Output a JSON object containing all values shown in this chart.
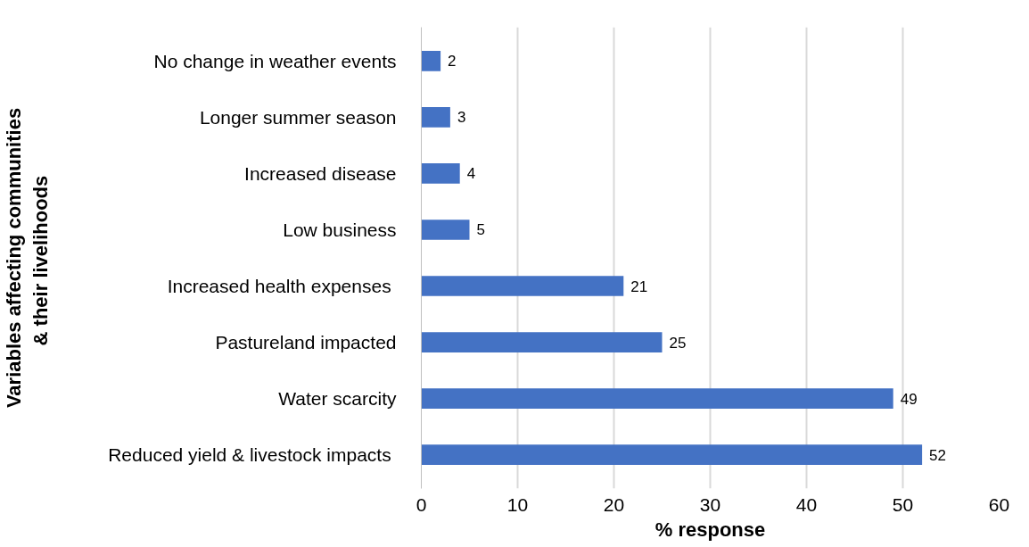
{
  "chart_data": {
    "type": "bar",
    "orientation": "horizontal",
    "categories": [
      "No change in weather events",
      "Longer summer season",
      "Increased disease",
      "Low business",
      "Increased health expenses ",
      "Pastureland impacted",
      "Water scarcity",
      "Reduced yield & livestock impacts "
    ],
    "values": [
      2,
      3,
      4,
      5,
      21,
      25,
      49,
      52
    ],
    "color": "#4472c4",
    "xlim": [
      0,
      60
    ],
    "xticks": [
      0,
      10,
      20,
      30,
      40,
      50,
      60
    ],
    "xlabel": "% response",
    "ylabel": "Variables affecting communities\n& their  livelihoods",
    "grid": "x",
    "data_labels": true
  }
}
